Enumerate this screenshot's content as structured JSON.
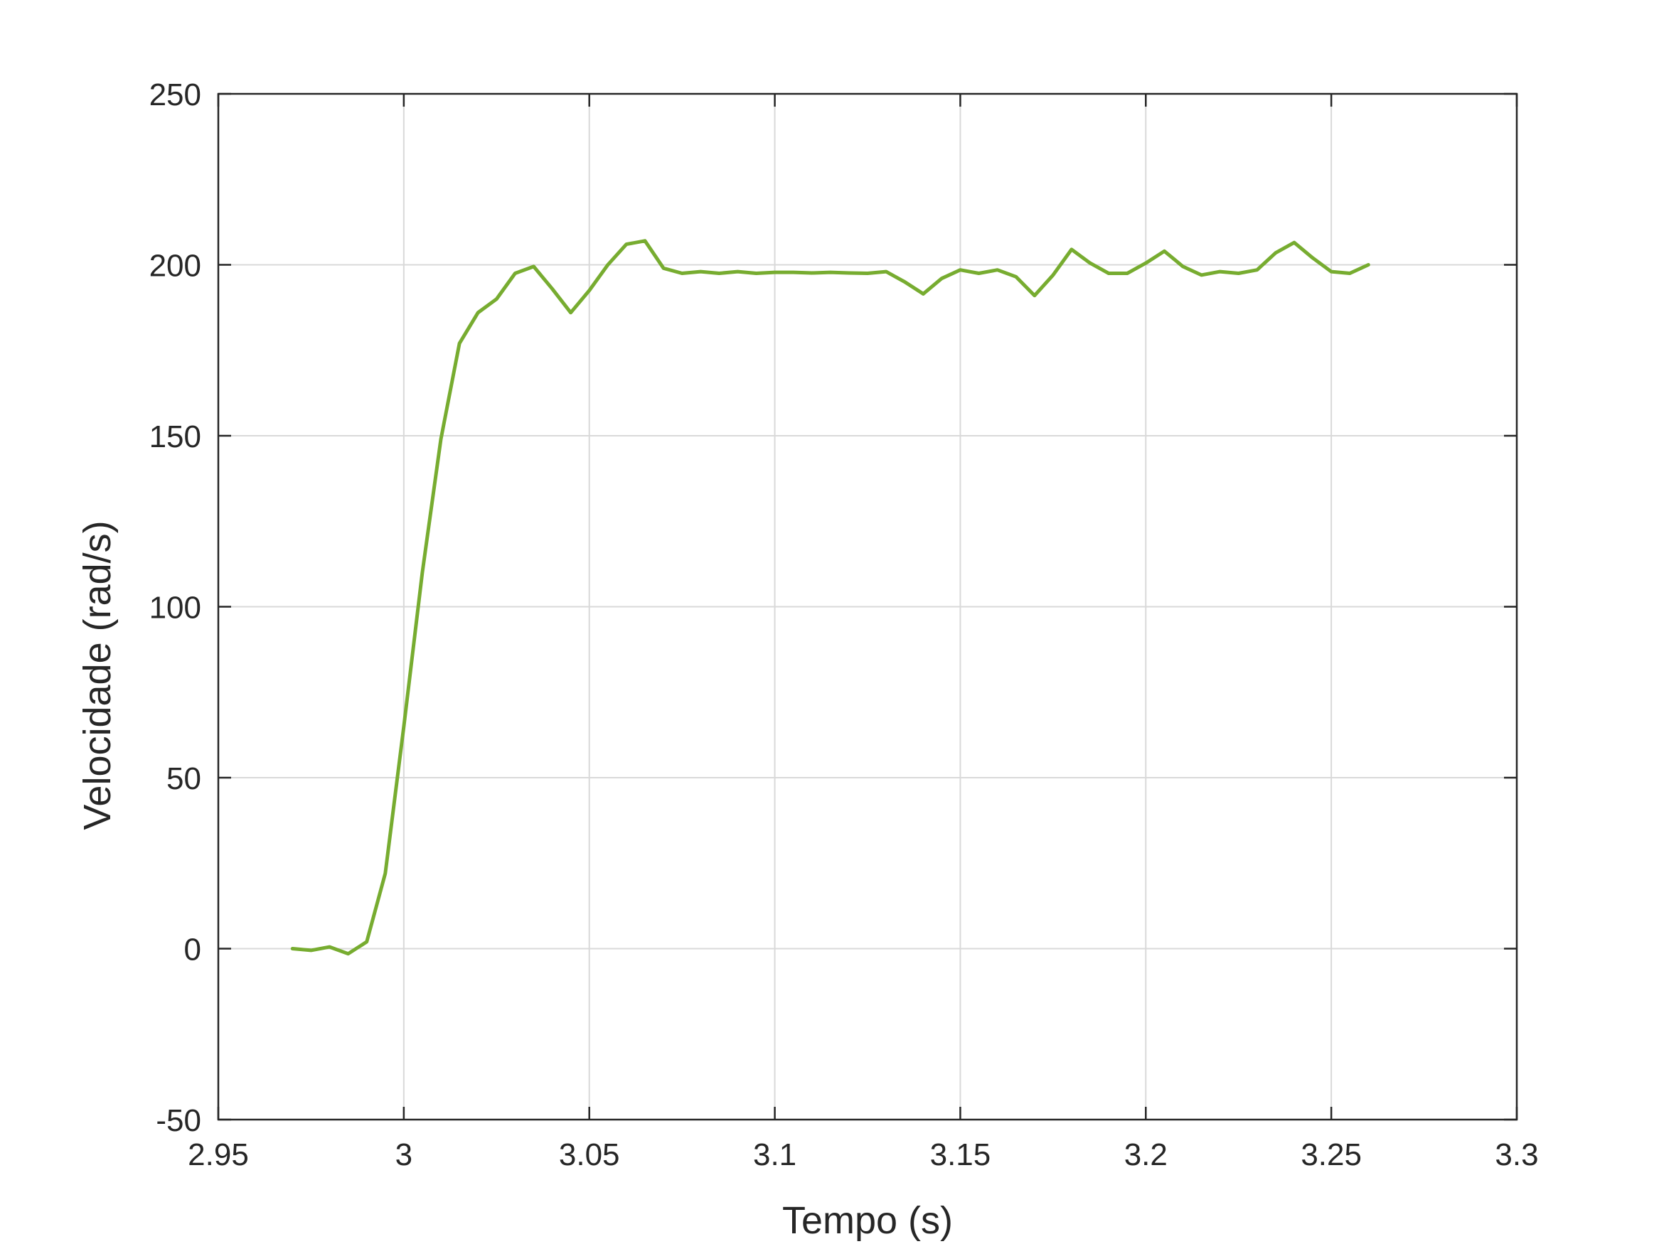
{
  "chart_data": {
    "type": "line",
    "title": "",
    "xlabel": "Tempo (s)",
    "ylabel": "Velocidade (rad/s)",
    "xlim": [
      2.95,
      3.3
    ],
    "ylim": [
      -50,
      250
    ],
    "xticks": [
      2.95,
      3.0,
      3.05,
      3.1,
      3.15,
      3.2,
      3.25,
      3.3
    ],
    "xtick_labels": [
      "2.95",
      "3",
      "3.05",
      "3.1",
      "3.15",
      "3.2",
      "3.25",
      "3.3"
    ],
    "yticks": [
      -50,
      0,
      50,
      100,
      150,
      200,
      250
    ],
    "ytick_labels": [
      "-50",
      "0",
      "50",
      "100",
      "150",
      "200",
      "250"
    ],
    "grid": true,
    "series": [
      {
        "color": "#77ac30",
        "x": [
          2.97,
          2.975,
          2.98,
          2.985,
          2.99,
          2.995,
          3.0,
          3.005,
          3.01,
          3.015,
          3.02,
          3.025,
          3.03,
          3.035,
          3.04,
          3.045,
          3.05,
          3.055,
          3.06,
          3.065,
          3.07,
          3.075,
          3.08,
          3.085,
          3.09,
          3.095,
          3.1,
          3.105,
          3.11,
          3.115,
          3.12,
          3.125,
          3.13,
          3.135,
          3.14,
          3.145,
          3.15,
          3.155,
          3.16,
          3.165,
          3.17,
          3.175,
          3.18,
          3.185,
          3.19,
          3.195,
          3.2,
          3.205,
          3.21,
          3.215,
          3.22,
          3.225,
          3.23,
          3.235,
          3.24,
          3.245,
          3.25,
          3.255,
          3.26
        ],
        "y": [
          0,
          -0.5,
          0.5,
          -1.5,
          2,
          22,
          65,
          110,
          149,
          177,
          186,
          190,
          197.5,
          199.5,
          193,
          186,
          192.5,
          200,
          206,
          207,
          199,
          197.5,
          198,
          197.5,
          198,
          197.5,
          197.8,
          197.8,
          197.6,
          197.8,
          197.6,
          197.5,
          198,
          195,
          191.5,
          196,
          198.5,
          197.5,
          198.5,
          196.5,
          191,
          197,
          204.5,
          200.5,
          197.5,
          197.5,
          200.5,
          204,
          199.5,
          197,
          198,
          197.5,
          198.5,
          203.5,
          206.5,
          202,
          198,
          197.5,
          200
        ]
      }
    ]
  }
}
